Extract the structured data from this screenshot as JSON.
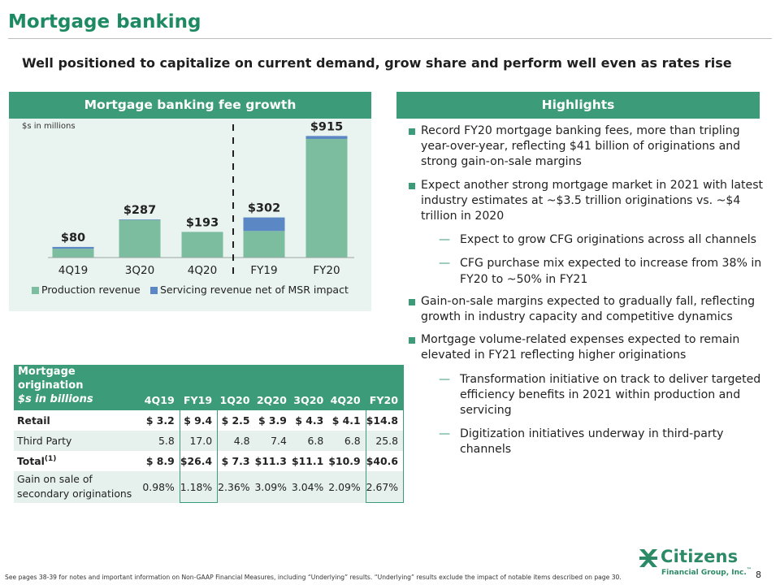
{
  "slide": {
    "title": "Mortgage banking",
    "subtitle": "Well positioned to capitalize on current demand, grow share and perform well even as rates rise",
    "page_number": "8",
    "footnote": "See pages 38-39 for notes and important information on Non-GAAP Financial Measures, including “Underlying” results. “Underlying” results exclude the impact of notable items described on page 30."
  },
  "chart_panel": {
    "header": "Mortgage banking fee growth",
    "units": "$s in millions"
  },
  "chart_data": {
    "type": "bar",
    "stacked": true,
    "categories": [
      "4Q19",
      "3Q20",
      "4Q20",
      "FY19",
      "FY20"
    ],
    "series": [
      {
        "name": "Production revenue",
        "color": "#7bbd9e",
        "values": [
          66,
          283,
          193,
          200,
          893
        ]
      },
      {
        "name": "Servicing revenue net of MSR impact",
        "color": "#5b88c4",
        "values": [
          14,
          4,
          0,
          102,
          22
        ]
      }
    ],
    "totals": [
      "$80",
      "$287",
      "$193",
      "$302",
      "$915"
    ],
    "divider_after_index": 2,
    "legend_position": "bottom",
    "ylim": [
      0,
      960
    ],
    "grid": false
  },
  "highlights": {
    "header": "Highlights",
    "bullets": [
      {
        "text": "Record FY20 mortgage banking fees, more than tripling year-over-year, reflecting $41 billion of originations and strong gain-on-sale margins",
        "subs": []
      },
      {
        "text": "Expect another strong mortgage market in 2021 with latest industry estimates at ~$3.5 trillion originations vs. ~$4 trillion in 2020",
        "subs": [
          "Expect to grow CFG originations across all channels",
          "CFG purchase mix expected to increase from 38% in FY20 to ~50% in FY21"
        ]
      },
      {
        "text": "Gain-on-sale margins expected to gradually fall, reflecting growth in industry capacity and competitive dynamics",
        "subs": []
      },
      {
        "text": "Mortgage volume-related expenses expected to remain elevated in FY21 reflecting higher originations",
        "subs": [
          "Transformation initiative on track to deliver targeted efficiency benefits in 2021 within production and servicing",
          "Digitization initiatives underway in third-party channels"
        ]
      }
    ]
  },
  "origination_table": {
    "header_line1": "Mortgage origination",
    "header_line2": "$s in billions",
    "columns": [
      "4Q19",
      "FY19",
      "1Q20",
      "2Q20",
      "3Q20",
      "4Q20",
      "FY20"
    ],
    "rows": [
      {
        "label": "Retail",
        "values": [
          "$ 3.2",
          "$   9.4",
          "$ 2.5",
          "$   3.9",
          "$   4.3",
          "$   4.1",
          "$14.8"
        ]
      },
      {
        "label": "Third Party",
        "values": [
          "5.8",
          "17.0",
          "4.8",
          "7.4",
          "6.8",
          "6.8",
          "25.8"
        ]
      },
      {
        "label": "Total",
        "sup": "(1)",
        "values": [
          "$ 8.9",
          "$26.4",
          "$ 7.3",
          "$11.3",
          "$11.1",
          "$10.9",
          "$40.6"
        ]
      },
      {
        "label_line1": "Gain on sale of",
        "label_line2": "secondary originations",
        "values": [
          "0.98%",
          "1.18%",
          "2.36%",
          "3.09%",
          "3.04%",
          "2.09%",
          "2.67%"
        ]
      }
    ]
  },
  "logo": {
    "word": "Citizens",
    "sub": "Financial Group, Inc.",
    "trademark": "™",
    "icon": "citizens-logo-icon",
    "color": "#2d8a66"
  },
  "colors": {
    "accent": "#3c9b78",
    "title": "#1d8a63",
    "panel_bg": "#e9f3ef"
  }
}
